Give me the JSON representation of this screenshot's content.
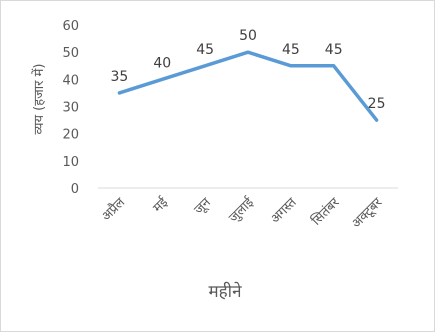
{
  "chart_data": {
    "type": "line",
    "title": "",
    "xlabel": "महीने",
    "ylabel": "व्यय (हजार में)",
    "categories": [
      "अप्रैल",
      "मई",
      "जून",
      "जुलाई",
      "अगस्त",
      "सितंबर",
      "अक्टूबर"
    ],
    "series": [
      {
        "values": [
          35,
          40,
          45,
          50,
          45,
          45,
          25
        ]
      }
    ],
    "data_labels": [
      "35",
      "40",
      "45",
      "50",
      "45",
      "45",
      "25"
    ],
    "ylim": [
      0,
      60
    ],
    "yticks": [
      "0",
      "10",
      "20",
      "30",
      "40",
      "50",
      "60"
    ],
    "grid": false,
    "legend": "none",
    "line_color": "#5b9bd5"
  }
}
